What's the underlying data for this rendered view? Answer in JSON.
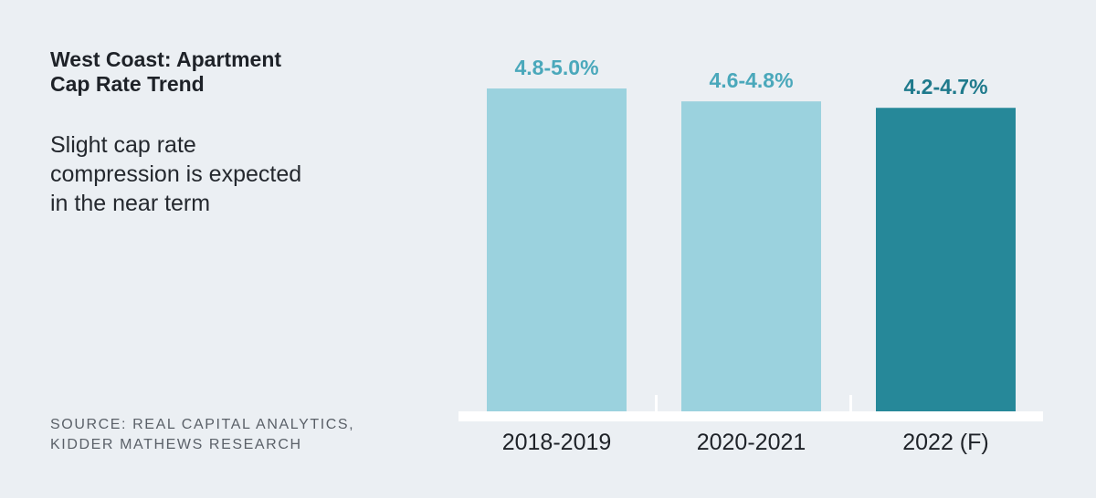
{
  "title_line1": "West Coast: Apartment",
  "title_line2": "Cap Rate Trend",
  "subtitle_lines": [
    "Slight cap rate",
    "compression is expected",
    "in the near term"
  ],
  "source_line1": "SOURCE: REAL CAPITAL ANALYTICS,",
  "source_line2": "KIDDER MATHEWS RESEARCH",
  "chart_data": {
    "type": "bar",
    "categories": [
      "2018-2019",
      "2020-2021",
      "2022 (F)"
    ],
    "labels": [
      "4.8-5.0%",
      "4.6-4.8%",
      "4.2-4.7%"
    ],
    "values": [
      5.0,
      4.8,
      4.7
    ],
    "ylim": [
      0,
      5.0
    ],
    "colors": {
      "historical": "#9bd2de",
      "forecast": "#268899",
      "historical_label": "#4aa8bb",
      "forecast_label": "#1f7a8c",
      "baseline": "#ffffff"
    },
    "bar_kind": [
      "historical",
      "historical",
      "forecast"
    ]
  }
}
